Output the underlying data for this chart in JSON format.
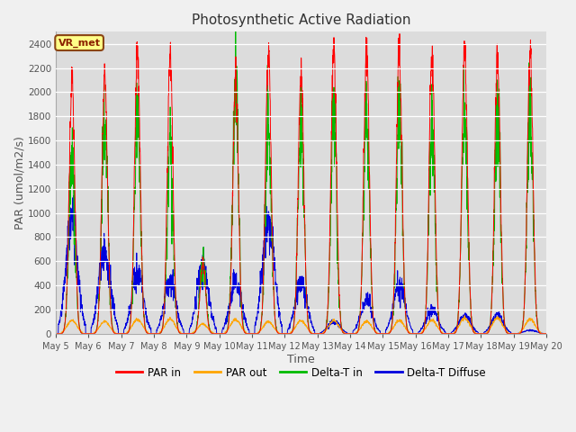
{
  "title": "Photosynthetic Active Radiation",
  "xlabel": "Time",
  "ylabel": "PAR (umol/m2/s)",
  "annotation": "VR_met",
  "ylim": [
    0,
    2500
  ],
  "bg_color": "#dcdcdc",
  "legend_entries": [
    "PAR in",
    "PAR out",
    "Delta-T in",
    "Delta-T Diffuse"
  ],
  "legend_colors": [
    "#ff0000",
    "#ffa500",
    "#00bb00",
    "#0000dd"
  ],
  "tick_dates": [
    "May 5",
    "May 6",
    "May 7",
    "May 8",
    "May 9",
    "May 10",
    "May 11",
    "May 12",
    "May 13",
    "May 14",
    "May 15",
    "May 16",
    "May 17",
    "May 18",
    "May 19",
    "May 20"
  ],
  "num_days": 15,
  "points_per_day": 144,
  "par_in_peaks": [
    2100,
    2150,
    2380,
    2280,
    600,
    2100,
    2340,
    2200,
    2340,
    2350,
    2350,
    2350,
    2350,
    2340,
    2350
  ],
  "par_out_peaks": [
    110,
    100,
    120,
    120,
    80,
    120,
    100,
    110,
    110,
    100,
    110,
    110,
    130,
    130,
    120
  ],
  "delta_in_peaks": [
    1520,
    1830,
    1820,
    1520,
    620,
    2050,
    1780,
    1780,
    1780,
    1780,
    1800,
    1800,
    1800,
    1800,
    1800
  ],
  "delta_diff_peaks": [
    950,
    700,
    500,
    430,
    550,
    430,
    950,
    430,
    100,
    270,
    400,
    200,
    150,
    150,
    30
  ]
}
